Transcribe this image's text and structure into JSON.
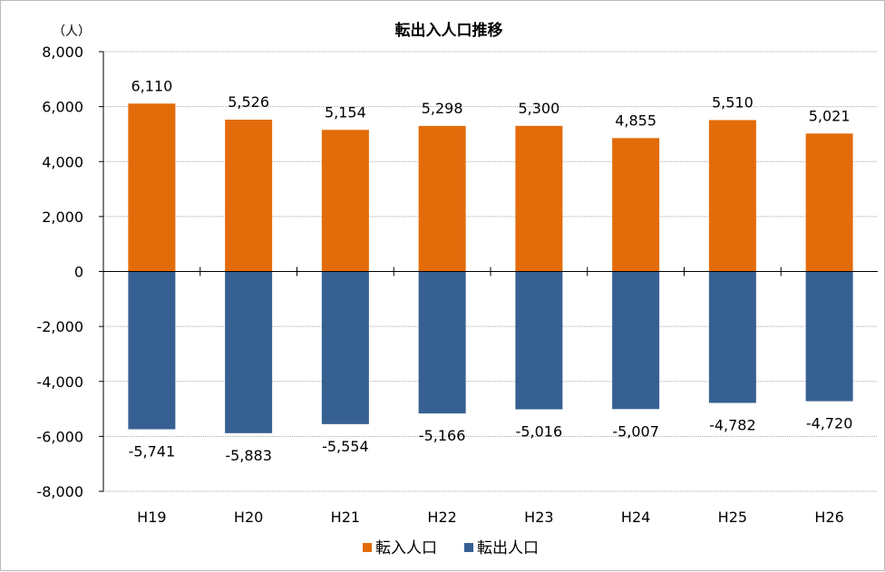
{
  "chart_data": {
    "type": "bar",
    "title": "転出入人口推移",
    "unit_label": "（人）",
    "categories": [
      "H19",
      "H20",
      "H21",
      "H22",
      "H23",
      "H24",
      "H25",
      "H26"
    ],
    "series": [
      {
        "name": "転入人口",
        "color": "#e36c0a",
        "values": [
          6110,
          5526,
          5154,
          5298,
          5300,
          4855,
          5510,
          5021
        ]
      },
      {
        "name": "転出人口",
        "color": "#376092",
        "values": [
          -5741,
          -5883,
          -5554,
          -5166,
          -5016,
          -5007,
          -4782,
          -4720
        ]
      }
    ],
    "ylim": [
      -8000,
      8000
    ],
    "yticks": [
      8000,
      6000,
      4000,
      2000,
      0,
      -2000,
      -4000,
      -6000,
      -8000
    ],
    "ytick_labels": [
      "8,000",
      "6,000",
      "4,000",
      "2,000",
      "0",
      "-2,000",
      "-4,000",
      "-6,000",
      "-8,000"
    ],
    "data_labels": {
      "in": [
        "6,110",
        "5,526",
        "5,154",
        "5,298",
        "5,300",
        "4,855",
        "5,510",
        "5,021"
      ],
      "out": [
        "-5,741",
        "-5,883",
        "-5,554",
        "-5,166",
        "-5,016",
        "-5,007",
        "-4,782",
        "-4,720"
      ]
    },
    "grid": true,
    "legend_position": "bottom-center",
    "xlabel": "",
    "ylabel": ""
  }
}
